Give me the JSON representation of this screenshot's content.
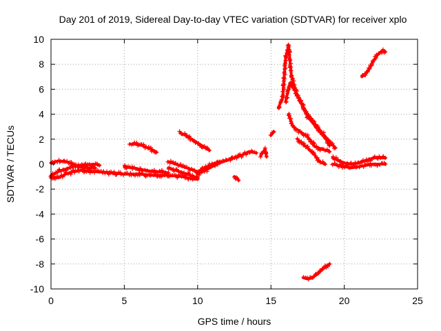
{
  "chart_data": {
    "type": "scatter",
    "title": "Day 201 of 2019, Sidereal Day-to-day VTEC variation (SDTVAR) for receiver xplo",
    "xlabel": "GPS time / hours",
    "ylabel": "SDTVAR / TECUs",
    "xlim": [
      0,
      25
    ],
    "ylim": [
      -10,
      10
    ],
    "x_ticks": [
      0,
      5,
      10,
      15,
      20,
      25
    ],
    "y_ticks": [
      -10,
      -8,
      -6,
      -4,
      -2,
      0,
      2,
      4,
      6,
      8,
      10
    ],
    "grid": true,
    "marker": "+",
    "marker_color": "#ff0000",
    "series": [
      {
        "name": "arc-1",
        "points": [
          [
            0.0,
            -0.9
          ],
          [
            0.5,
            -0.6
          ],
          [
            1.0,
            -0.4
          ],
          [
            1.5,
            -0.2
          ],
          [
            2.0,
            -0.1
          ],
          [
            2.5,
            -0.05
          ],
          [
            3.0,
            0.0
          ],
          [
            3.3,
            -0.1
          ]
        ]
      },
      {
        "name": "arc-2",
        "points": [
          [
            0.0,
            -1.0
          ],
          [
            0.5,
            -1.1
          ],
          [
            1.0,
            -0.8
          ],
          [
            1.5,
            -0.6
          ],
          [
            2.0,
            -0.5
          ],
          [
            3.0,
            -0.6
          ],
          [
            4.0,
            -0.7
          ],
          [
            5.0,
            -0.8
          ],
          [
            6.0,
            -0.8
          ],
          [
            7.0,
            -0.9
          ],
          [
            8.0,
            -0.9
          ],
          [
            9.0,
            -1.0
          ],
          [
            9.7,
            -1.2
          ],
          [
            10.0,
            -1.2
          ]
        ]
      },
      {
        "name": "arc-3",
        "points": [
          [
            0.0,
            0.1
          ],
          [
            0.5,
            0.25
          ],
          [
            1.0,
            0.2
          ],
          [
            1.5,
            0.0
          ],
          [
            2.0,
            -0.2
          ],
          [
            2.5,
            -0.3
          ],
          [
            3.0,
            -0.3
          ]
        ]
      },
      {
        "name": "arc-4",
        "points": [
          [
            5.0,
            -0.2
          ],
          [
            5.5,
            -0.3
          ],
          [
            6.0,
            -0.4
          ],
          [
            6.5,
            -0.5
          ],
          [
            7.0,
            -0.6
          ],
          [
            7.5,
            -0.6
          ],
          [
            8.0,
            -0.7
          ]
        ]
      },
      {
        "name": "arc-5",
        "points": [
          [
            5.4,
            1.6
          ],
          [
            5.8,
            1.6
          ],
          [
            6.2,
            1.5
          ],
          [
            6.6,
            1.3
          ],
          [
            7.0,
            1.1
          ],
          [
            7.2,
            0.95
          ]
        ]
      },
      {
        "name": "arc-6",
        "points": [
          [
            8.0,
            0.2
          ],
          [
            8.5,
            0.0
          ],
          [
            9.0,
            -0.2
          ],
          [
            9.5,
            -0.4
          ],
          [
            10.0,
            -0.6
          ],
          [
            10.5,
            -0.3
          ],
          [
            11.0,
            0.0
          ],
          [
            11.5,
            0.2
          ]
        ]
      },
      {
        "name": "arc-7",
        "points": [
          [
            8.0,
            -0.3
          ],
          [
            8.5,
            -0.5
          ],
          [
            9.0,
            -0.7
          ],
          [
            9.5,
            -0.9
          ],
          [
            10.0,
            -1.1
          ]
        ]
      },
      {
        "name": "arc-8",
        "points": [
          [
            8.8,
            2.5
          ],
          [
            9.2,
            2.3
          ],
          [
            9.6,
            2.0
          ],
          [
            10.0,
            1.7
          ],
          [
            10.4,
            1.4
          ],
          [
            10.8,
            1.1
          ]
        ]
      },
      {
        "name": "arc-9",
        "points": [
          [
            10.0,
            -0.8
          ],
          [
            10.5,
            -0.5
          ],
          [
            11.0,
            -0.2
          ],
          [
            11.5,
            0.1
          ],
          [
            12.0,
            0.3
          ],
          [
            12.5,
            0.5
          ],
          [
            13.0,
            0.7
          ],
          [
            13.5,
            1.0
          ],
          [
            14.0,
            0.9
          ]
        ]
      },
      {
        "name": "arc-10",
        "points": [
          [
            12.5,
            -1.0
          ],
          [
            12.8,
            -1.3
          ]
        ]
      },
      {
        "name": "arc-11",
        "points": [
          [
            14.3,
            0.7
          ],
          [
            14.6,
            1.2
          ],
          [
            14.7,
            0.6
          ]
        ]
      },
      {
        "name": "arc-12",
        "points": [
          [
            15.0,
            2.3
          ],
          [
            15.2,
            2.6
          ]
        ]
      },
      {
        "name": "arc-13",
        "points": [
          [
            15.5,
            4.5
          ],
          [
            15.8,
            5.3
          ],
          [
            16.0,
            8.5
          ],
          [
            16.2,
            9.5
          ],
          [
            16.4,
            7.0
          ],
          [
            16.8,
            5.5
          ],
          [
            17.5,
            3.8
          ],
          [
            18.2,
            2.8
          ],
          [
            18.8,
            2.0
          ],
          [
            19.0,
            1.5
          ]
        ]
      },
      {
        "name": "arc-14",
        "points": [
          [
            16.0,
            5.0
          ],
          [
            16.3,
            6.5
          ],
          [
            16.6,
            6.0
          ],
          [
            17.0,
            5.0
          ],
          [
            17.5,
            4.0
          ],
          [
            18.0,
            3.2
          ],
          [
            18.5,
            2.5
          ],
          [
            19.0,
            1.8
          ],
          [
            19.4,
            1.3
          ]
        ]
      },
      {
        "name": "arc-15",
        "points": [
          [
            16.2,
            4.0
          ],
          [
            16.5,
            3.0
          ],
          [
            17.0,
            2.6
          ],
          [
            17.5,
            2.2
          ],
          [
            18.0,
            1.4
          ],
          [
            18.5,
            1.2
          ],
          [
            19.0,
            1.0
          ]
        ]
      },
      {
        "name": "arc-16",
        "points": [
          [
            16.8,
            2.0
          ],
          [
            17.5,
            1.3
          ],
          [
            18.0,
            0.7
          ],
          [
            18.3,
            0.2
          ],
          [
            18.7,
            0.0
          ]
        ]
      },
      {
        "name": "arc-17",
        "points": [
          [
            19.2,
            0.5
          ],
          [
            19.6,
            0.3
          ],
          [
            20.0,
            0.1
          ],
          [
            20.5,
            0.0
          ],
          [
            21.0,
            0.1
          ],
          [
            21.5,
            0.3
          ],
          [
            22.0,
            0.5
          ],
          [
            22.8,
            0.5
          ]
        ]
      },
      {
        "name": "arc-18",
        "points": [
          [
            19.2,
            0.0
          ],
          [
            19.6,
            -0.1
          ],
          [
            20.0,
            -0.2
          ],
          [
            20.5,
            -0.3
          ],
          [
            21.0,
            -0.2
          ],
          [
            21.5,
            -0.1
          ],
          [
            22.0,
            0.0
          ],
          [
            22.8,
            0.0
          ]
        ]
      },
      {
        "name": "arc-19",
        "points": [
          [
            21.2,
            7.0
          ],
          [
            21.5,
            7.3
          ],
          [
            21.8,
            7.8
          ],
          [
            22.0,
            8.3
          ],
          [
            22.3,
            8.8
          ],
          [
            22.6,
            9.1
          ],
          [
            22.8,
            9.0
          ]
        ]
      },
      {
        "name": "arc-20",
        "points": [
          [
            17.2,
            -9.1
          ],
          [
            17.5,
            -9.2
          ],
          [
            17.8,
            -9.1
          ],
          [
            18.2,
            -8.8
          ],
          [
            18.6,
            -8.3
          ],
          [
            19.0,
            -8.0
          ]
        ]
      }
    ]
  }
}
